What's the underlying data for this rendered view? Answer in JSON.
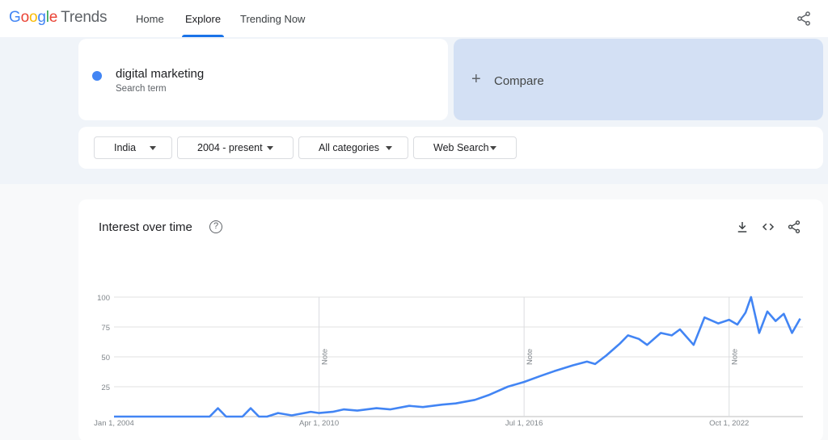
{
  "header": {
    "logo_google": "Google",
    "logo_trends": "Trends",
    "nav": [
      {
        "label": "Home",
        "active": false
      },
      {
        "label": "Explore",
        "active": true
      },
      {
        "label": "Trending Now",
        "active": false
      }
    ],
    "share_icon": "share-icon"
  },
  "search": {
    "term": "digital marketing",
    "subtitle": "Search term",
    "color": "#4285f4"
  },
  "compare": {
    "plus": "+",
    "label": "Compare"
  },
  "filters": {
    "region": "India",
    "time": "2004 - present",
    "category": "All categories",
    "property": "Web Search"
  },
  "chart_card": {
    "title": "Interest over time",
    "help_glyph": "?",
    "tools": [
      "download-icon",
      "embed-icon",
      "share-icon"
    ]
  },
  "chart_data": {
    "type": "line",
    "title": "Interest over time",
    "xlabel": "",
    "ylabel": "",
    "ylim": [
      0,
      100
    ],
    "yticks": [
      "100",
      "75",
      "50",
      "25"
    ],
    "xticks": [
      "Jan 1, 2004",
      "Apr 1, 2010",
      "Jul 1, 2016",
      "Oct 1, 2022"
    ],
    "notes": [
      "Note",
      "Note",
      "Note"
    ],
    "grid": true,
    "series": [
      {
        "name": "digital marketing",
        "color": "#4285f4",
        "points": [
          [
            "2004-01",
            0
          ],
          [
            "2006-06",
            0
          ],
          [
            "2006-12",
            0
          ],
          [
            "2007-03",
            7
          ],
          [
            "2007-06",
            0
          ],
          [
            "2007-12",
            0
          ],
          [
            "2008-03",
            7
          ],
          [
            "2008-06",
            0
          ],
          [
            "2008-09",
            0
          ],
          [
            "2009-01",
            3
          ],
          [
            "2009-06",
            1
          ],
          [
            "2010-01",
            4
          ],
          [
            "2010-04",
            3
          ],
          [
            "2010-09",
            4
          ],
          [
            "2011-01",
            6
          ],
          [
            "2011-06",
            5
          ],
          [
            "2012-01",
            7
          ],
          [
            "2012-06",
            6
          ],
          [
            "2013-01",
            9
          ],
          [
            "2013-06",
            8
          ],
          [
            "2014-01",
            10
          ],
          [
            "2014-06",
            11
          ],
          [
            "2015-01",
            14
          ],
          [
            "2015-06",
            18
          ],
          [
            "2016-01",
            25
          ],
          [
            "2016-07",
            29
          ],
          [
            "2017-01",
            34
          ],
          [
            "2017-06",
            38
          ],
          [
            "2018-01",
            43
          ],
          [
            "2018-06",
            46
          ],
          [
            "2018-09",
            44
          ],
          [
            "2019-01",
            51
          ],
          [
            "2019-06",
            61
          ],
          [
            "2019-09",
            68
          ],
          [
            "2020-01",
            65
          ],
          [
            "2020-04",
            60
          ],
          [
            "2020-09",
            70
          ],
          [
            "2021-01",
            68
          ],
          [
            "2021-04",
            73
          ],
          [
            "2021-09",
            60
          ],
          [
            "2022-01",
            83
          ],
          [
            "2022-06",
            78
          ],
          [
            "2022-10",
            81
          ],
          [
            "2023-01",
            77
          ],
          [
            "2023-04",
            87
          ],
          [
            "2023-06",
            100
          ],
          [
            "2023-09",
            70
          ],
          [
            "2023-12",
            88
          ],
          [
            "2024-03",
            80
          ],
          [
            "2024-06",
            86
          ],
          [
            "2024-09",
            70
          ],
          [
            "2024-12",
            82
          ]
        ]
      }
    ]
  }
}
